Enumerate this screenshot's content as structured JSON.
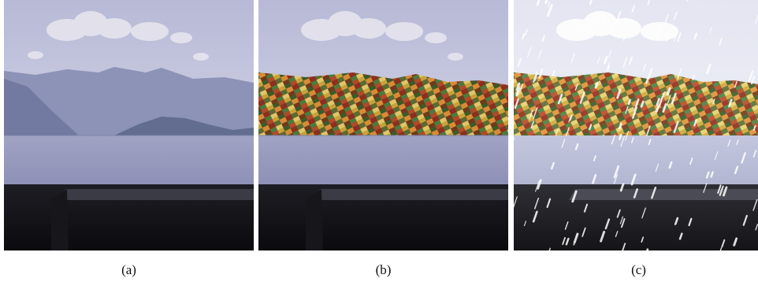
{
  "figure": {
    "panels": [
      {
        "id": "a",
        "caption": "(a)"
      },
      {
        "id": "b",
        "caption": "(b)"
      },
      {
        "id": "c",
        "caption": "(c)"
      }
    ]
  }
}
